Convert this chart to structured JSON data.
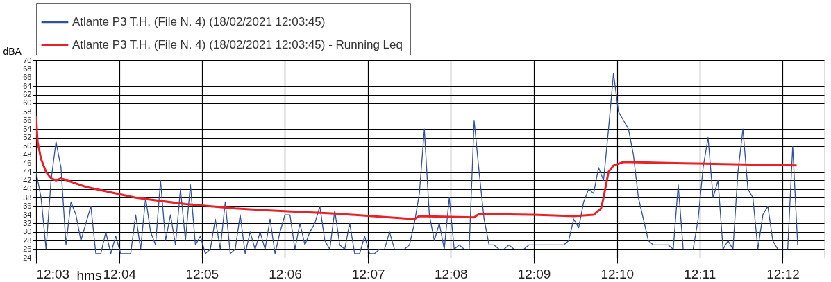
{
  "chart_data": {
    "type": "line",
    "ylabel": "dBA",
    "xlabel": "hms",
    "xlim": [
      12.05,
      12.2083
    ],
    "xticks": [
      {
        "value": 12.05,
        "label": "12:03"
      },
      {
        "value": 12.0667,
        "label": "12:04"
      },
      {
        "value": 12.0833,
        "label": "12:05"
      },
      {
        "value": 12.1,
        "label": "12:06"
      },
      {
        "value": 12.1167,
        "label": "12:07"
      },
      {
        "value": 12.1333,
        "label": "12:08"
      },
      {
        "value": 12.15,
        "label": "12:09"
      },
      {
        "value": 12.1667,
        "label": "12:10"
      },
      {
        "value": 12.1833,
        "label": "12:11"
      },
      {
        "value": 12.2,
        "label": "12:12"
      }
    ],
    "ylim": [
      24,
      70
    ],
    "yticks": [
      24,
      26,
      28,
      30,
      32,
      34,
      36,
      38,
      40,
      42,
      44,
      46,
      48,
      50,
      52,
      54,
      56,
      58,
      60,
      62,
      64,
      66,
      68,
      70
    ],
    "grid": true,
    "legend": "top",
    "marker": "none",
    "line_style": "solid",
    "series": [
      {
        "name": "Atlante P3 T.H.  (File N. 4) (18/02/2021 12:03:45)",
        "color": "#3050a0",
        "x": [
          12.05,
          12.051,
          12.052,
          12.053,
          12.054,
          12.055,
          12.056,
          12.057,
          12.058,
          12.059,
          12.06,
          12.061,
          12.062,
          12.063,
          12.064,
          12.065,
          12.066,
          12.067,
          12.068,
          12.069,
          12.07,
          12.071,
          12.072,
          12.073,
          12.074,
          12.075,
          12.076,
          12.077,
          12.078,
          12.079,
          12.08,
          12.081,
          12.082,
          12.083,
          12.084,
          12.085,
          12.086,
          12.087,
          12.088,
          12.089,
          12.09,
          12.091,
          12.092,
          12.093,
          12.094,
          12.095,
          12.096,
          12.097,
          12.098,
          12.099,
          12.1,
          12.101,
          12.102,
          12.103,
          12.104,
          12.105,
          12.106,
          12.107,
          12.108,
          12.109,
          12.11,
          12.111,
          12.112,
          12.113,
          12.114,
          12.115,
          12.116,
          12.117,
          12.118,
          12.119,
          12.12,
          12.121,
          12.122,
          12.123,
          12.124,
          12.125,
          12.126,
          12.127,
          12.128,
          12.129,
          12.13,
          12.131,
          12.132,
          12.133,
          12.134,
          12.135,
          12.136,
          12.137,
          12.138,
          12.139,
          12.14,
          12.141,
          12.142,
          12.143,
          12.144,
          12.145,
          12.146,
          12.147,
          12.148,
          12.149,
          12.15,
          12.151,
          12.152,
          12.153,
          12.154,
          12.155,
          12.156,
          12.157,
          12.158,
          12.159,
          12.16,
          12.161,
          12.162,
          12.163,
          12.164,
          12.165,
          12.166,
          12.167,
          12.168,
          12.169,
          12.17,
          12.171,
          12.172,
          12.173,
          12.174,
          12.175,
          12.176,
          12.177,
          12.178,
          12.179,
          12.18,
          12.181,
          12.182,
          12.183,
          12.184,
          12.185,
          12.186,
          12.187,
          12.188,
          12.189,
          12.19,
          12.191,
          12.192,
          12.193,
          12.194,
          12.195,
          12.196,
          12.197,
          12.198,
          12.199,
          12.2,
          12.201,
          12.202,
          12.203
        ],
        "values": [
          44,
          38,
          26,
          42,
          51,
          45,
          27,
          37,
          34,
          28,
          32,
          36,
          25,
          25,
          30,
          25,
          29,
          25,
          25,
          25,
          34,
          26,
          38,
          30,
          27,
          42,
          28,
          34,
          27,
          40,
          28,
          41,
          27,
          29,
          25,
          26,
          33,
          26,
          37,
          25,
          26,
          34,
          25,
          30,
          26,
          30,
          26,
          33,
          25,
          30,
          34,
          34,
          26,
          32,
          27,
          30,
          32,
          36,
          28,
          26,
          35,
          27,
          26,
          32,
          25,
          25,
          29,
          25,
          25,
          26,
          26,
          30,
          26,
          26,
          26,
          27,
          32,
          39,
          54,
          34,
          28,
          32,
          26,
          38,
          26,
          27,
          26,
          26,
          56,
          44,
          33,
          27,
          27,
          26,
          26,
          27,
          26,
          26,
          26,
          27,
          27,
          27,
          27,
          27,
          27,
          27,
          27,
          28,
          33,
          31,
          37,
          40,
          39,
          45,
          42,
          54,
          67,
          58,
          56,
          54,
          48,
          38,
          33,
          28,
          27,
          27,
          27,
          27,
          26,
          41,
          26,
          26,
          26,
          33,
          45,
          52,
          38,
          42,
          26,
          28,
          26,
          44,
          54,
          40,
          38,
          26,
          34,
          36,
          28,
          26,
          26,
          26,
          50,
          27
        ]
      },
      {
        "name": "Atlante P3 T.H.  (File N. 4) (18/02/2021 12:03:45) - Running Leq",
        "color": "#e8202a",
        "x": [
          12.05,
          12.0503,
          12.051,
          12.052,
          12.053,
          12.054,
          12.055,
          12.06,
          12.07,
          12.08,
          12.09,
          12.097,
          12.11,
          12.126,
          12.127,
          12.138,
          12.139,
          12.15,
          12.158,
          12.162,
          12.1635,
          12.164,
          12.165,
          12.166,
          12.168,
          12.18,
          12.2028
        ],
        "values": [
          57,
          51,
          47,
          44,
          42.5,
          42,
          42.5,
          40.5,
          38,
          36.5,
          35.5,
          35,
          34.3,
          33,
          33.7,
          33.4,
          34.2,
          34,
          33.7,
          34,
          35.5,
          38,
          44,
          45.5,
          46.3,
          46,
          45.5
        ]
      }
    ]
  }
}
